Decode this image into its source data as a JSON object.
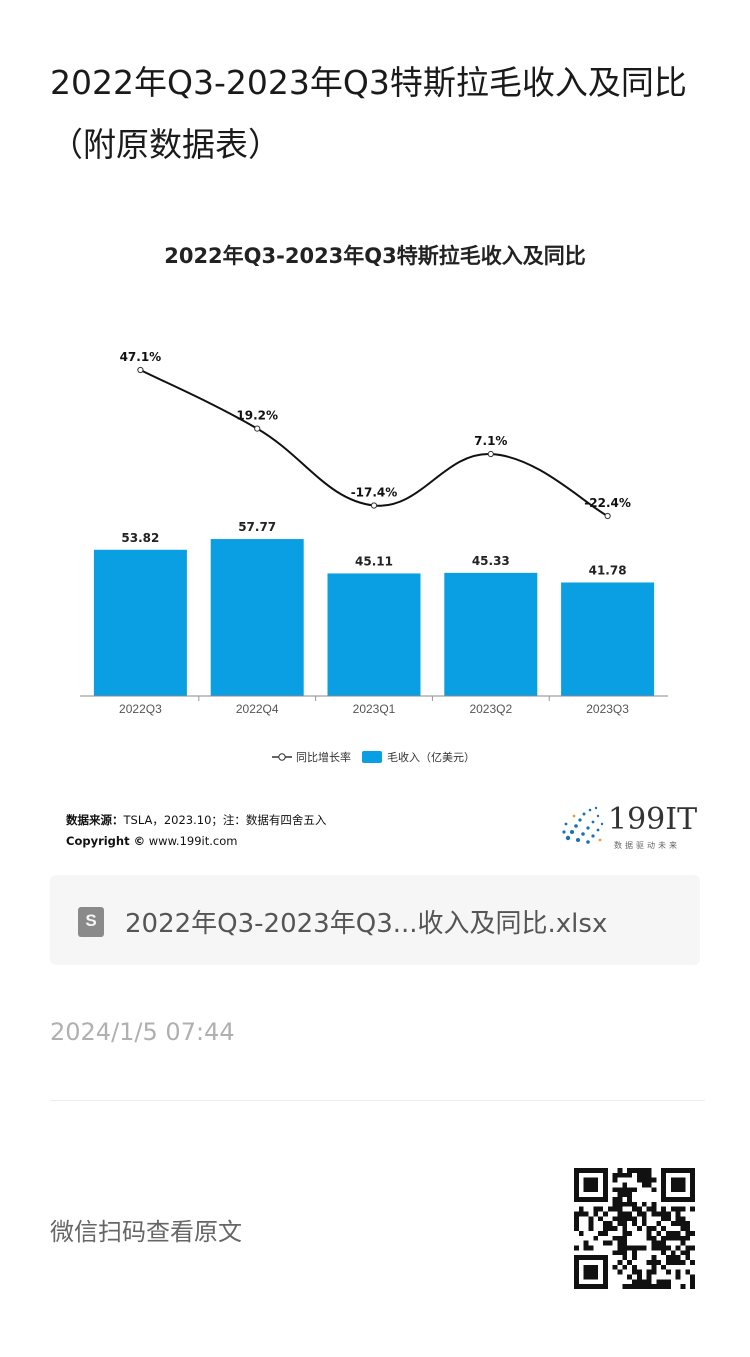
{
  "page": {
    "title": "2022年Q3-2023年Q3特斯拉毛收入及同比（附原数据表）"
  },
  "chart_data": {
    "type": "bar",
    "title": "2022年Q3-2023年Q3特斯拉毛收入及同比",
    "categories": [
      "2022Q3",
      "2022Q4",
      "2023Q1",
      "2023Q2",
      "2023Q3"
    ],
    "series": [
      {
        "name": "毛收入（亿美元）",
        "type": "bar",
        "values": [
          53.82,
          57.77,
          45.11,
          45.33,
          41.78
        ],
        "labels": [
          "53.82",
          "57.77",
          "45.11",
          "45.33",
          "41.78"
        ],
        "color": "#0a9fe3"
      },
      {
        "name": "同比增长率",
        "type": "line",
        "values": [
          47.1,
          19.2,
          -17.4,
          7.1,
          -22.4
        ],
        "labels": [
          "47.1%",
          "19.2%",
          "-17.4%",
          "7.1%",
          "-22.4%"
        ],
        "color": "#111111"
      }
    ],
    "legend": {
      "position": "bottom",
      "items": [
        "同比增长率",
        "毛收入（亿美元）"
      ]
    },
    "grid": false
  },
  "source": {
    "label": "数据来源：",
    "text": "TSLA，2023.10；注：数据有四舍五入",
    "copyright_label": "Copyright ©",
    "copyright_text": "www.199it.com"
  },
  "logo": {
    "text": "199IT",
    "sub": "数据驱动未来"
  },
  "attachment": {
    "icon": "spreadsheet-icon",
    "icon_letter": "S",
    "filename": "2022年Q3-2023年Q3...收入及同比.xlsx"
  },
  "timestamp": "2024/1/5 07:44",
  "qr": {
    "caption": "微信扫码查看原文"
  }
}
